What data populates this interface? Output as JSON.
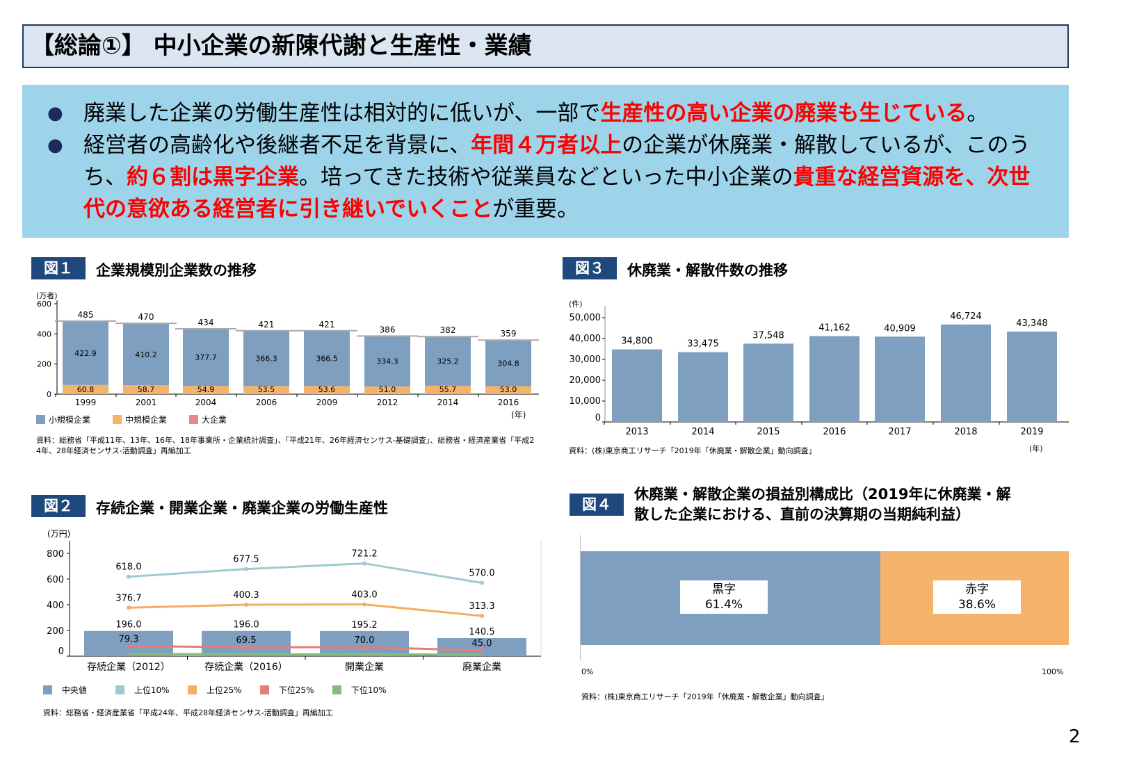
{
  "title": "【総論①】 中小企業の新陳代謝と生産性・業績",
  "summary": {
    "bullet1": [
      {
        "t": "廃業した企業の労働生産性は相対的に低いが、一部で",
        "r": false
      },
      {
        "t": "生産性の高い企業の廃業も生じている",
        "r": true
      },
      {
        "t": "。",
        "r": false
      }
    ],
    "bullet2": [
      {
        "t": "経営者の高齢化や後継者不足を背景に、",
        "r": false
      },
      {
        "t": "年間４万者以上",
        "r": true
      },
      {
        "t": "の企業が休廃業・解散しているが、このうち、",
        "r": false
      },
      {
        "t": "約６割は黒字企業",
        "r": true
      },
      {
        "t": "。培ってきた技術や従業員などといった中小企業の",
        "r": false
      },
      {
        "t": "貴重な経営資源を、次世代の意欲ある経営者に引き継いでいくこと",
        "r": true
      },
      {
        "t": "が重要。",
        "r": false
      }
    ]
  },
  "colors": {
    "small": "#7f9fc0",
    "medium": "#f5b26b",
    "large": "#e88a8a",
    "top10": "#9ecbd0",
    "top25": "#f5ae61",
    "bottom25": "#e77b7b",
    "bottom10": "#85bb7c",
    "profit": "#7f9fc0",
    "loss": "#f5b26b",
    "navy": "#1f497d"
  },
  "fig1": {
    "label": "図１",
    "title": "企業規模別企業数の推移",
    "source": "資料：総務省「平成11年、13年、16年、18年事業所・企業統計調査」、「平成21年、26年経済センサス-基礎調査」、総務省・経済産業省「平成2",
    "source2": "4年、28年経済センサス-活動調査」再編加工",
    "chart_data": {
      "type": "bar",
      "stacked": true,
      "ylabel": "(万者)",
      "xunit": "(年)",
      "ylim": [
        0,
        600
      ],
      "yticks": [
        0,
        200,
        400,
        600
      ],
      "categories": [
        "1999",
        "2001",
        "2004",
        "2006",
        "2009",
        "2012",
        "2014",
        "2016"
      ],
      "totals": [
        485,
        470,
        434,
        421,
        421,
        386,
        382,
        359
      ],
      "series": [
        {
          "name": "小規模企業",
          "values": [
            422.9,
            410.2,
            377.7,
            366.3,
            366.5,
            334.3,
            325.2,
            304.8
          ]
        },
        {
          "name": "中規模企業",
          "values": [
            60.8,
            58.7,
            54.9,
            53.5,
            53.6,
            51.0,
            55.7,
            53.0
          ]
        },
        {
          "name": "大企業",
          "values": [
            1.2,
            1.1,
            1.2,
            1.1,
            1.1,
            1.1,
            1.1,
            1.1
          ]
        }
      ]
    }
  },
  "fig2": {
    "label": "図２",
    "title": "存続企業・開業企業・廃業企業の労働生産性",
    "source": "資料：総務省・経済産業省「平成24年、平成28年経済センサス-活動調査」再編加工",
    "chart_data": {
      "type": "bar+line",
      "ylabel": "(万円)",
      "ylim": [
        0,
        900
      ],
      "yticks": [
        0,
        200,
        400,
        600,
        800
      ],
      "categories": [
        "存続企業（2012）",
        "存続企業（2016）",
        "開業企業",
        "廃業企業"
      ],
      "series": [
        {
          "name": "中央値",
          "kind": "bar",
          "values": [
            196.0,
            196.0,
            195.2,
            140.5
          ]
        },
        {
          "name": "上位10%",
          "kind": "line",
          "values": [
            618.0,
            677.5,
            721.2,
            570.0
          ]
        },
        {
          "name": "上位25%",
          "kind": "line",
          "values": [
            376.7,
            400.3,
            403.0,
            313.3
          ]
        },
        {
          "name": "下位25%",
          "kind": "line",
          "values": [
            79.3,
            69.5,
            70.0,
            45.0
          ]
        },
        {
          "name": "下位10%",
          "kind": "line",
          "labeled": false,
          "values": [
            18,
            15,
            15,
            12
          ]
        }
      ]
    }
  },
  "fig3": {
    "label": "図３",
    "title": "休廃業・解散件数の推移",
    "source": "資料：(株)東京商工リサーチ「2019年「休廃業・解散企業」動向調査」",
    "chart_data": {
      "type": "bar",
      "ylabel": "(件)",
      "xunit": "(年)",
      "ylim": [
        0,
        55000
      ],
      "yticks": [
        0,
        10000,
        20000,
        30000,
        40000,
        50000
      ],
      "categories": [
        "2013",
        "2014",
        "2015",
        "2016",
        "2017",
        "2018",
        "2019"
      ],
      "values": [
        34800,
        33475,
        37548,
        41162,
        40909,
        46724,
        43348
      ]
    }
  },
  "fig4": {
    "label": "図４",
    "title1": "休廃業・解散企業の損益別構成比（2019年に休廃業・解",
    "title2": "散した企業における、直前の決算期の当期純利益）",
    "source": "資料：(株)東京商工リサーチ「2019年「休廃業・解散企業」動向調査」",
    "chart_data": {
      "type": "bar",
      "stacked": true,
      "orientation": "horizontal",
      "xticks": [
        "0%",
        "100%"
      ],
      "series": [
        {
          "name": "黒字",
          "value": 61.4,
          "label": "61.4%"
        },
        {
          "name": "赤字",
          "value": 38.6,
          "label": "38.6%"
        }
      ]
    }
  },
  "page_number": "2"
}
